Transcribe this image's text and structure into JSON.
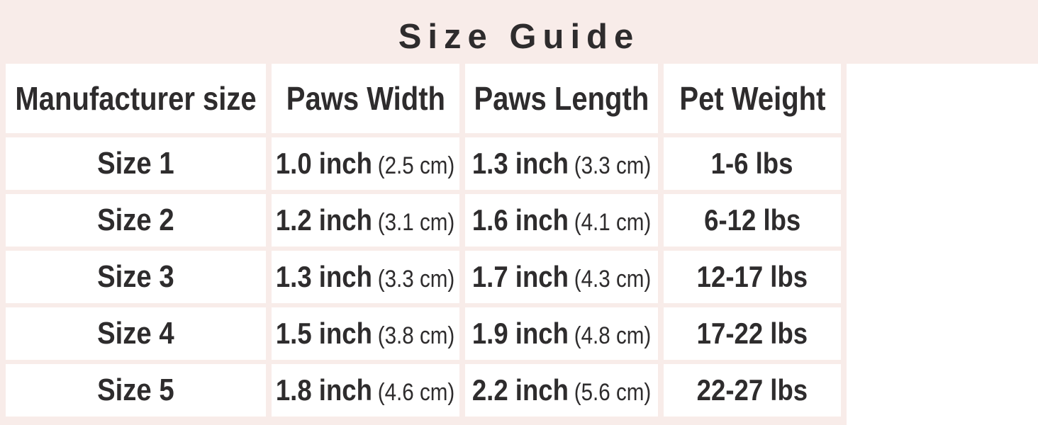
{
  "title": "Size Guide",
  "colors": {
    "background": "#f8ece9",
    "cell_background": "#ffffff",
    "text": "#2e2c2d"
  },
  "size_table": {
    "headers": [
      "Manufacturer size",
      "Paws Width",
      "Paws Length",
      "Pet Weight"
    ],
    "rows": [
      {
        "size": "Size 1",
        "paws_width": "1.0 inch",
        "paws_width_metric": "(2.5 cm)",
        "paws_length": "1.3 inch",
        "paws_length_metric": "(3.3 cm)",
        "pet_weight": "1-6 lbs"
      },
      {
        "size": "Size 2",
        "paws_width": "1.2 inch",
        "paws_width_metric": "(3.1 cm)",
        "paws_length": "1.6 inch",
        "paws_length_metric": "(4.1 cm)",
        "pet_weight": "6-12 lbs"
      },
      {
        "size": "Size 3",
        "paws_width": "1.3 inch",
        "paws_width_metric": "(3.3 cm)",
        "paws_length": "1.7 inch",
        "paws_length_metric": "(4.3 cm)",
        "pet_weight": "12-17 lbs"
      },
      {
        "size": "Size 4",
        "paws_width": "1.5 inch",
        "paws_width_metric": "(3.8 cm)",
        "paws_length": "1.9 inch",
        "paws_length_metric": "(4.8 cm)",
        "pet_weight": "17-22 lbs"
      },
      {
        "size": "Size 5",
        "paws_width": "1.8 inch",
        "paws_width_metric": "(4.6 cm)",
        "paws_length": "2.2 inch",
        "paws_length_metric": "(5.6 cm)",
        "pet_weight": "22-27 lbs"
      }
    ]
  },
  "chart_data": {
    "type": "table",
    "title": "Size Guide",
    "columns": [
      "Manufacturer size",
      "Paws Width",
      "Paws Length",
      "Pet Weight"
    ],
    "rows": [
      [
        "Size 1",
        "1.0 inch (2.5 cm)",
        "1.3 inch (3.3 cm)",
        "1-6 lbs"
      ],
      [
        "Size 2",
        "1.2 inch (3.1 cm)",
        "1.6 inch (4.1 cm)",
        "6-12 lbs"
      ],
      [
        "Size 3",
        "1.3 inch (3.3 cm)",
        "1.7 inch (4.3 cm)",
        "12-17 lbs"
      ],
      [
        "Size 4",
        "1.5 inch (3.8 cm)",
        "1.9 inch (4.8 cm)",
        "17-22 lbs"
      ],
      [
        "Size 5",
        "1.8 inch (4.6 cm)",
        "2.2 inch (5.6 cm)",
        "22-27 lbs"
      ]
    ]
  }
}
